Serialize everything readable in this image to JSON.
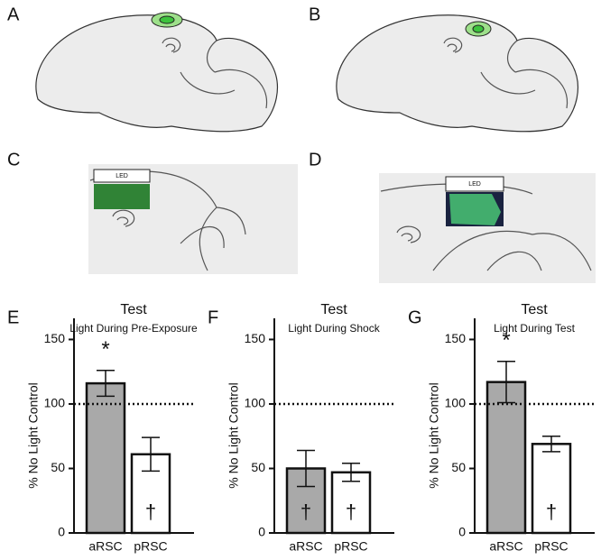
{
  "illustrations": {
    "panels": [
      "A",
      "B",
      "C",
      "D"
    ],
    "led_labels": [
      "LED",
      "LED"
    ]
  },
  "chart_data": [
    {
      "type": "bar",
      "panel": "E",
      "title": "Test",
      "subtitle": "Light During Pre-Exposure",
      "ylabel": "% No Light Control",
      "categories": [
        "aRSC",
        "pRSC"
      ],
      "values": [
        116,
        61
      ],
      "errors": [
        10,
        13
      ],
      "colors": [
        "#a9a9a9",
        "#ffffff"
      ],
      "ylim": [
        0,
        165
      ],
      "yticks": [
        0,
        50,
        100,
        150
      ],
      "reference_line": 100,
      "annotations": [
        {
          "text": "*",
          "category": 0,
          "place": "above"
        },
        {
          "text": "†",
          "category": 1,
          "place": "inside"
        }
      ]
    },
    {
      "type": "bar",
      "panel": "F",
      "title": "Test",
      "subtitle": "Light During Shock",
      "ylabel": "% No Light Control",
      "categories": [
        "aRSC",
        "pRSC"
      ],
      "values": [
        50,
        47
      ],
      "errors": [
        14,
        7
      ],
      "colors": [
        "#a9a9a9",
        "#ffffff"
      ],
      "ylim": [
        0,
        165
      ],
      "yticks": [
        0,
        50,
        100,
        150
      ],
      "reference_line": 100,
      "annotations": [
        {
          "text": "†",
          "category": 0,
          "place": "inside"
        },
        {
          "text": "†",
          "category": 1,
          "place": "inside"
        }
      ]
    },
    {
      "type": "bar",
      "panel": "G",
      "title": "Test",
      "subtitle": "Light During Test",
      "ylabel": "% No Light Control",
      "categories": [
        "aRSC",
        "pRSC"
      ],
      "values": [
        117,
        69
      ],
      "errors": [
        16,
        6
      ],
      "colors": [
        "#a9a9a9",
        "#ffffff"
      ],
      "ylim": [
        0,
        165
      ],
      "yticks": [
        0,
        50,
        100,
        150
      ],
      "reference_line": 100,
      "annotations": [
        {
          "text": "*",
          "category": 0,
          "place": "above"
        },
        {
          "text": "†",
          "category": 1,
          "place": "inside"
        }
      ]
    }
  ]
}
